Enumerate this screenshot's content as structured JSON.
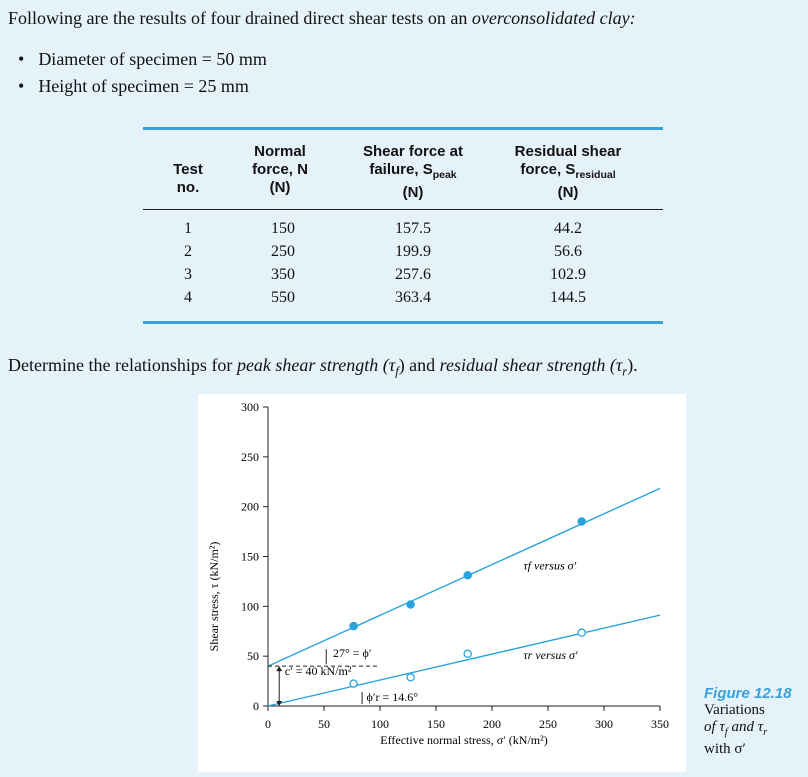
{
  "problem": {
    "intro_plain": "Following are the results of four drained direct shear tests on an ",
    "intro_italic": "overconsolidated clay:",
    "bullets": [
      "Diameter of specimen = 50 mm",
      "Height of specimen = 25 mm"
    ],
    "question_plain1": "Determine the relationships for ",
    "question_italic1": "peak shear strength",
    "question_sym1": "(τ",
    "question_sub1": "f",
    "question_mid": ") and ",
    "question_italic2": "residual shear strength",
    "question_sym2": "(τ",
    "question_sub2": "r",
    "question_end": ")."
  },
  "table": {
    "headers": {
      "test": [
        "Test",
        "no."
      ],
      "normal": [
        "Normal",
        "force, N",
        "(N)"
      ],
      "shear_peak": [
        "Shear force at",
        "failure, S",
        "peak",
        "(N)"
      ],
      "shear_residual": [
        "Residual shear",
        "force, S",
        "residual",
        "(N)"
      ]
    },
    "rows": [
      {
        "no": "1",
        "normal": "150",
        "peak": "157.5",
        "residual": "44.2"
      },
      {
        "no": "2",
        "normal": "250",
        "peak": "199.9",
        "residual": "56.6"
      },
      {
        "no": "3",
        "normal": "350",
        "peak": "257.6",
        "residual": "102.9"
      },
      {
        "no": "4",
        "normal": "550",
        "peak": "363.4",
        "residual": "144.5"
      }
    ]
  },
  "figure": {
    "caption_title": "Figure 12.18",
    "caption_lines": [
      "Variations",
      "of τ",
      "f",
      " and τ",
      "r",
      "with σ′"
    ]
  },
  "chart_data": {
    "type": "scatter",
    "xlabel": "Effective normal stress, σ′ (kN/m²)",
    "ylabel": "Shear stress, τ (kN/m²)",
    "xlim": [
      0,
      350
    ],
    "ylim": [
      0,
      300
    ],
    "xticks": [
      0,
      50,
      100,
      150,
      200,
      250,
      300,
      350
    ],
    "yticks": [
      0,
      50,
      100,
      150,
      200,
      250,
      300
    ],
    "series": [
      {
        "name": "τf versus σ′",
        "marker": "filled",
        "points": [
          [
            76.4,
            80.2
          ],
          [
            127.3,
            101.8
          ],
          [
            178.3,
            131.2
          ],
          [
            280.1,
            185.1
          ]
        ],
        "fit": {
          "intercept": 40,
          "slope": 0.5095
        }
      },
      {
        "name": "τr versus σ′",
        "marker": "open",
        "points": [
          [
            76.4,
            22.5
          ],
          [
            127.3,
            28.8
          ],
          [
            178.3,
            52.4
          ],
          [
            280.1,
            73.6
          ]
        ],
        "fit": {
          "intercept": 0,
          "slope": 0.2605
        }
      }
    ],
    "annotations": {
      "cohesion": "c′ = 40 kN/m²",
      "phi_peak": "27° = ϕ′",
      "phi_residual": "ϕ′r = 14.6°"
    },
    "color": "#2aa3dc"
  }
}
